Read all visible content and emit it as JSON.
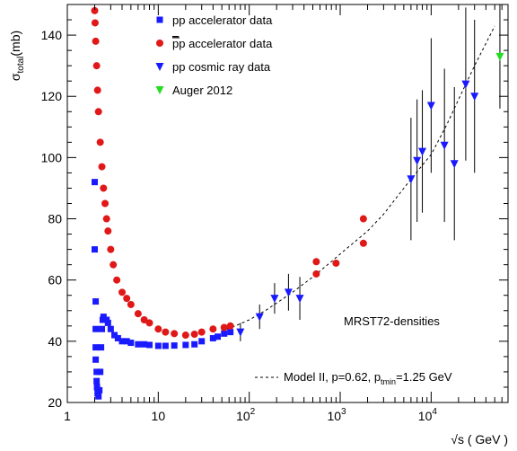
{
  "chart_data": {
    "type": "scatter",
    "xlabel": "√s ( GeV )",
    "ylabel_main": "σ",
    "ylabel_sub": "total",
    "ylabel_unit": "(mb)",
    "xscale": "log",
    "xlim": [
      1,
      70000
    ],
    "ylim": [
      20,
      150
    ],
    "grid": false,
    "legend_placement": "top-left",
    "x_ticks": [
      1,
      10,
      100,
      1000,
      10000
    ],
    "x_tick_labels": [
      {
        "base": "1",
        "exp": ""
      },
      {
        "base": "10",
        "exp": ""
      },
      {
        "base": "10",
        "exp": "2"
      },
      {
        "base": "10",
        "exp": "3"
      },
      {
        "base": "10",
        "exp": "4"
      }
    ],
    "y_ticks": [
      20,
      40,
      60,
      80,
      100,
      120,
      140
    ],
    "annotation": "MRST72-densities",
    "model_legend": {
      "pre": "Model II, p=0.62, p",
      "sub": "tmin",
      "post": "=1.25 GeV"
    },
    "model_curve": {
      "name": "Model II, p=0.62, p_tmin=1.25 GeV",
      "style": "dashed",
      "color": "#000000",
      "x": [
        50,
        70,
        100,
        150,
        200,
        300,
        500,
        800,
        1000,
        2000,
        3000,
        5000,
        8000,
        10000,
        15000,
        20000,
        30000,
        50000
      ],
      "y": [
        43.5,
        45,
        47,
        50,
        52.5,
        56,
        61,
        66,
        68.5,
        76,
        81.5,
        90,
        97.5,
        101,
        111,
        119,
        130,
        143
      ]
    },
    "series": [
      {
        "name_pre": "pp accelerator data",
        "name_bar": "",
        "marker": "square",
        "color": "#1a1aff",
        "points": [
          [
            2.0,
            92,
            0
          ],
          [
            2.0,
            70,
            0
          ],
          [
            2.05,
            53,
            0
          ],
          [
            2.05,
            44,
            0
          ],
          [
            2.05,
            38,
            0
          ],
          [
            2.05,
            34,
            0
          ],
          [
            2.1,
            30,
            0
          ],
          [
            2.1,
            27,
            0
          ],
          [
            2.12,
            25,
            0
          ],
          [
            2.15,
            23,
            0
          ],
          [
            2.2,
            22,
            0
          ],
          [
            2.25,
            24,
            0
          ],
          [
            2.3,
            30,
            0
          ],
          [
            2.35,
            38,
            0
          ],
          [
            2.4,
            44,
            0
          ],
          [
            2.45,
            47,
            0
          ],
          [
            2.5,
            48,
            0
          ],
          [
            2.6,
            47,
            0
          ],
          [
            2.7,
            47,
            0
          ],
          [
            2.8,
            46,
            0
          ],
          [
            3.0,
            44,
            0
          ],
          [
            3.3,
            42,
            0
          ],
          [
            3.6,
            41,
            0
          ],
          [
            4.0,
            40,
            0
          ],
          [
            4.5,
            40,
            0
          ],
          [
            5.0,
            39.5,
            0
          ],
          [
            6.0,
            39,
            0
          ],
          [
            7.0,
            39,
            0
          ],
          [
            8.0,
            38.8,
            0
          ],
          [
            10,
            38.5,
            0
          ],
          [
            12,
            38.5,
            0
          ],
          [
            15,
            38.6,
            0
          ],
          [
            20,
            38.8,
            0
          ],
          [
            25,
            39,
            0
          ],
          [
            30,
            40,
            0
          ],
          [
            40,
            41,
            0
          ],
          [
            45,
            41.5,
            0
          ],
          [
            53,
            42.5,
            0
          ],
          [
            62,
            43,
            0
          ]
        ]
      },
      {
        "name_pre": "",
        "name_bar": "p",
        "name_post": "p accelerator data",
        "marker": "circle",
        "color": "#e01818",
        "points": [
          [
            2.0,
            148,
            0
          ],
          [
            2.02,
            144,
            0
          ],
          [
            2.05,
            138,
            0
          ],
          [
            2.1,
            130,
            0
          ],
          [
            2.15,
            122,
            0
          ],
          [
            2.2,
            115,
            0
          ],
          [
            2.3,
            105,
            0
          ],
          [
            2.4,
            97,
            0
          ],
          [
            2.5,
            90,
            0
          ],
          [
            2.6,
            85,
            0
          ],
          [
            2.7,
            80,
            0
          ],
          [
            2.8,
            76,
            0
          ],
          [
            3.0,
            70,
            0
          ],
          [
            3.2,
            65,
            0
          ],
          [
            3.5,
            60,
            0
          ],
          [
            4.0,
            56,
            0
          ],
          [
            4.5,
            54,
            0
          ],
          [
            5.0,
            52,
            0
          ],
          [
            6.0,
            49,
            0
          ],
          [
            7.0,
            47,
            0
          ],
          [
            8.0,
            46,
            0
          ],
          [
            10,
            44,
            0
          ],
          [
            12,
            43,
            0
          ],
          [
            15,
            42.5,
            0
          ],
          [
            20,
            42,
            0
          ],
          [
            25,
            42.3,
            0
          ],
          [
            30,
            43,
            0
          ],
          [
            40,
            44,
            0
          ],
          [
            53,
            44.5,
            0
          ],
          [
            62,
            45,
            0
          ],
          [
            546,
            66,
            0
          ],
          [
            546,
            62,
            0
          ],
          [
            900,
            65.5,
            0
          ],
          [
            1800,
            80,
            0
          ],
          [
            1800,
            72,
            0
          ]
        ]
      },
      {
        "name_pre": "pp cosmic ray data",
        "name_bar": "",
        "marker": "triangle-down",
        "color": "#1a1aff",
        "points": [
          [
            80,
            43,
            3
          ],
          [
            130,
            48,
            4
          ],
          [
            190,
            54,
            5
          ],
          [
            270,
            56,
            6
          ],
          [
            360,
            54,
            7
          ],
          [
            6000,
            93,
            20
          ],
          [
            7000,
            99,
            20
          ],
          [
            8000,
            102,
            20
          ],
          [
            10000,
            117,
            22
          ],
          [
            14000,
            104,
            25
          ],
          [
            18000,
            98,
            25
          ],
          [
            24000,
            124,
            25
          ],
          [
            30000,
            120,
            25
          ]
        ]
      },
      {
        "name_pre": "Auger 2012",
        "name_bar": "",
        "marker": "triangle-down",
        "color": "#22dd22",
        "points": [
          [
            57000,
            133,
            17
          ]
        ]
      }
    ]
  }
}
